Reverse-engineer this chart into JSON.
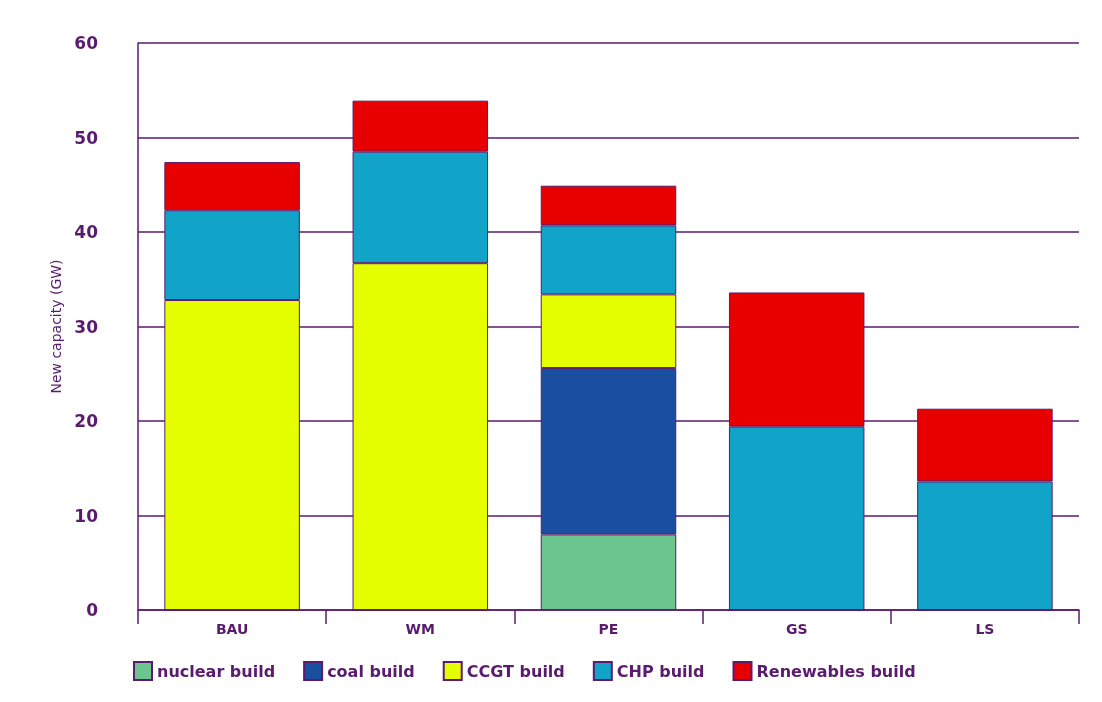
{
  "chart_data": {
    "type": "bar",
    "stacked": true,
    "ylabel": "New capacity (GW)",
    "categories": [
      "BAU",
      "WM",
      "PE",
      "GS",
      "LS"
    ],
    "series": [
      {
        "name": "nuclear build",
        "color": "#6cc48f",
        "values": [
          0,
          0,
          8.0,
          0,
          0
        ]
      },
      {
        "name": "coal build",
        "color": "#1a4fa0",
        "values": [
          0,
          0,
          17.6,
          0,
          0
        ]
      },
      {
        "name": "CCGT build",
        "color": "#e5ff00",
        "values": [
          32.8,
          36.7,
          7.8,
          0,
          0
        ]
      },
      {
        "name": "CHP build",
        "color": "#12a3c9",
        "values": [
          9.5,
          11.8,
          7.3,
          19.4,
          13.6
        ]
      },
      {
        "name": "Renewables build",
        "color": "#e60000",
        "values": [
          5.1,
          5.4,
          4.2,
          14.2,
          7.7
        ]
      }
    ],
    "ylim": [
      0,
      60
    ],
    "yticks": [
      0,
      10,
      20,
      30,
      40,
      50,
      60
    ],
    "grid": "y",
    "legend": "bottom"
  }
}
